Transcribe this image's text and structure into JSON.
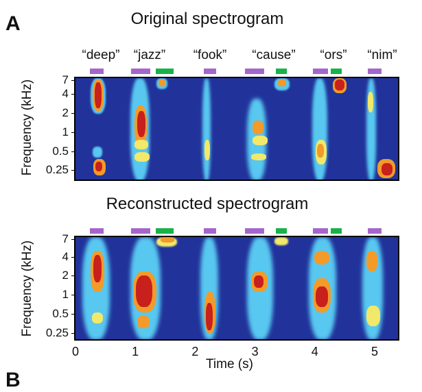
{
  "panel_label": "A",
  "next_panel_label": "B",
  "top_title": "Original spectrogram",
  "bottom_title": "Reconstructed spectrogram",
  "words": [
    "“deep”",
    "“jazz”",
    "“fook”",
    "“cause”",
    "“ors”",
    "“nim”"
  ],
  "y_axis_label": "Frequency (kHz)",
  "x_axis_label": "Time (s)",
  "colors": {
    "background": "#21339b",
    "purple": "#a566cc",
    "green": "#18b24a",
    "red": "#c8201c",
    "orange": "#f39a28",
    "yellow": "#f2e86a",
    "cyan": "#58c8f0"
  },
  "chart_data": [
    {
      "type": "heatmap",
      "title": "Original spectrogram",
      "xlabel": "Time (s)",
      "ylabel": "Frequency (kHz)",
      "x_ticks": [],
      "y_ticks": [
        "7",
        "4",
        "2",
        "1",
        "0.5",
        "0.25"
      ],
      "x_range_s": [
        0,
        5.4
      ],
      "word_labels": [
        "“deep”",
        "“jazz”",
        "“fook”",
        "“cause”",
        "“ors”",
        "“nim”"
      ]
    },
    {
      "type": "heatmap",
      "title": "Reconstructed spectrogram",
      "xlabel": "Time (s)",
      "ylabel": "Frequency (kHz)",
      "x_ticks": [
        "0",
        "1",
        "2",
        "3",
        "4",
        "5"
      ],
      "y_ticks": [
        "7",
        "4",
        "2",
        "1",
        "0.5",
        "0.25"
      ],
      "x_range_s": [
        0,
        5.4
      ]
    }
  ]
}
